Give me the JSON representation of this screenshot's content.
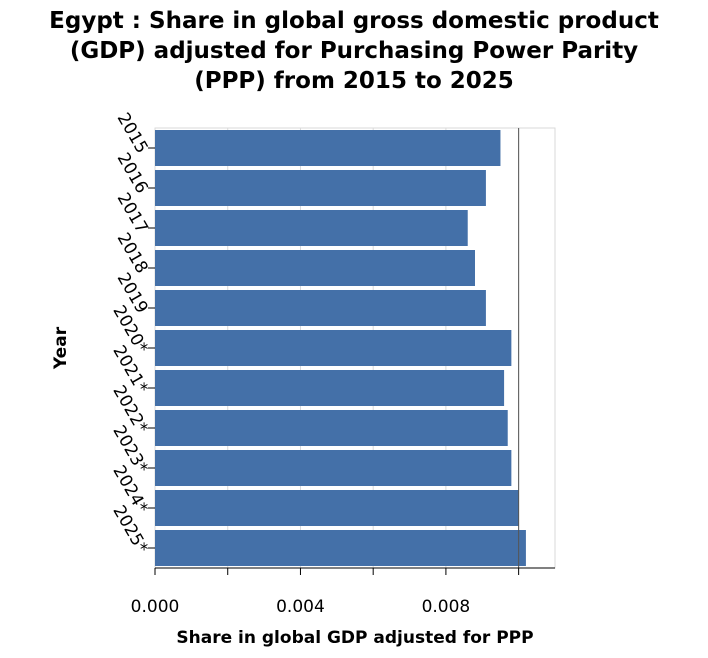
{
  "chart_data": {
    "type": "bar",
    "orientation": "horizontal",
    "title": "Egypt : Share in global gross domestic product (GDP) adjusted for Purchasing Power Parity (PPP) from 2015 to 2025",
    "title_lines": [
      "Egypt : Share in global gross domestic product",
      "(GDP) adjusted for Purchasing Power Parity",
      "(PPP) from 2015 to 2025"
    ],
    "xlabel": "Share in global GDP adjusted for PPP",
    "ylabel": "Year",
    "categories": [
      "2015",
      "2016",
      "2017",
      "2018",
      "2019",
      "2020*",
      "2021*",
      "2022*",
      "2023*",
      "2024*",
      "2025*"
    ],
    "values": [
      0.0095,
      0.0091,
      0.0086,
      0.0088,
      0.0091,
      0.0098,
      0.0096,
      0.0097,
      0.0098,
      0.01,
      0.0102
    ],
    "xlim": [
      0,
      0.011
    ],
    "xticks": [
      0,
      0.002,
      0.004,
      0.006,
      0.008,
      0.01
    ],
    "xtick_labels": [
      "0.000",
      "",
      "0.004",
      "",
      "0.008",
      ""
    ],
    "bar_color": "#4470a8",
    "grid": true,
    "legend": "none"
  }
}
